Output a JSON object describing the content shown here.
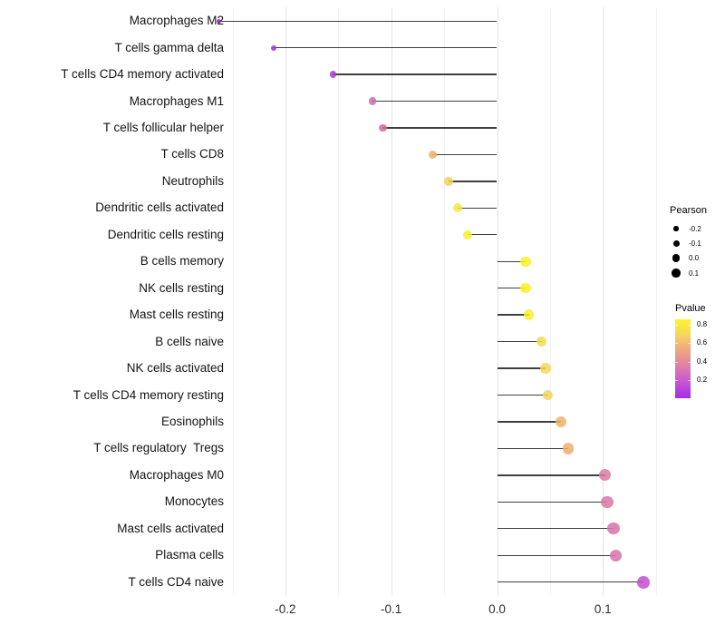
{
  "chart_data": {
    "type": "lollipop",
    "title": "",
    "xlabel": "",
    "ylabel": "",
    "grid": "vertical light-gray, white background, no panel border",
    "xlim": [
      -0.285,
      0.158
    ],
    "x_major_ticks": [
      {
        "value": -0.2,
        "label": "-0.2"
      },
      {
        "value": -0.1,
        "label": "-0.1"
      },
      {
        "value": 0.0,
        "label": "0.0"
      },
      {
        "value": 0.1,
        "label": "0.1"
      }
    ],
    "x_minor_ticks": [
      -0.25,
      -0.15,
      -0.05,
      0.05,
      0.15
    ],
    "series_note": "Pearson correlation per immune cell type; dot size = Pearson, dot color = Pvalue (plasma palette: purple=low p, yellow=high p); stem drawn from 0 to value",
    "rows": [
      {
        "label": "Macrophages M2",
        "pearson": -0.263,
        "color": "#8a25c9"
      },
      {
        "label": "T cells gamma delta",
        "pearson": -0.211,
        "color": "#9c2fd2"
      },
      {
        "label": "T cells CD4 memory activated",
        "pearson": -0.155,
        "color": "#ab3bd6"
      },
      {
        "label": "Macrophages M1",
        "pearson": -0.118,
        "color": "#cf68ad"
      },
      {
        "label": "T cells follicular helper",
        "pearson": -0.108,
        "color": "#d46aa2"
      },
      {
        "label": "T cells CD8",
        "pearson": -0.061,
        "color": "#eeb069"
      },
      {
        "label": "Neutrophils",
        "pearson": -0.046,
        "color": "#f3cf58"
      },
      {
        "label": "Dendritic cells activated",
        "pearson": -0.037,
        "color": "#f6e83e"
      },
      {
        "label": "Dendritic cells resting",
        "pearson": -0.028,
        "color": "#f8f02d"
      },
      {
        "label": "B cells memory",
        "pearson": 0.027,
        "color": "#f8f127"
      },
      {
        "label": "NK cells resting",
        "pearson": 0.027,
        "color": "#f8f127"
      },
      {
        "label": "Mast cells resting",
        "pearson": 0.03,
        "color": "#f7ee31"
      },
      {
        "label": "B cells naive",
        "pearson": 0.042,
        "color": "#f6da52"
      },
      {
        "label": "NK cells activated",
        "pearson": 0.046,
        "color": "#f5d75a"
      },
      {
        "label": "T cells CD4 memory resting",
        "pearson": 0.048,
        "color": "#f4d45e"
      },
      {
        "label": "Eosinophils",
        "pearson": 0.06,
        "color": "#f0b16a"
      },
      {
        "label": "T cells regulatory  Tregs",
        "pearson": 0.067,
        "color": "#efad6e"
      },
      {
        "label": "Macrophages M0",
        "pearson": 0.102,
        "color": "#da7aa3"
      },
      {
        "label": "Monocytes",
        "pearson": 0.104,
        "color": "#d977a6"
      },
      {
        "label": "Mast cells activated",
        "pearson": 0.11,
        "color": "#d873a8"
      },
      {
        "label": "Plasma cells",
        "pearson": 0.112,
        "color": "#d771aa"
      },
      {
        "label": "T cells CD4 naive",
        "pearson": 0.138,
        "color": "#c24fd2"
      }
    ],
    "legend_size": {
      "title": "Pearson",
      "entries": [
        {
          "label": "-0.2",
          "diameter": 5.5
        },
        {
          "label": "-0.1",
          "diameter": 7
        },
        {
          "label": "0.0",
          "diameter": 8.5
        },
        {
          "label": "0.1",
          "diameter": 9.5
        }
      ]
    },
    "legend_color": {
      "title": "Pvalue",
      "tick_labels": [
        "0.8",
        "0.6",
        "0.4",
        "0.2"
      ],
      "gradient_top_to_bottom": [
        "#fcf42c",
        "#f6d45f",
        "#eda583",
        "#e07da8",
        "#c854d4",
        "#a32be2"
      ]
    },
    "colors": {
      "stem": "#3f3f3f",
      "grid_major": "#e4e4e4",
      "grid_minor": "#f2f2f2",
      "axis_text": "#2e2e2e",
      "label_text": "#141414"
    }
  }
}
